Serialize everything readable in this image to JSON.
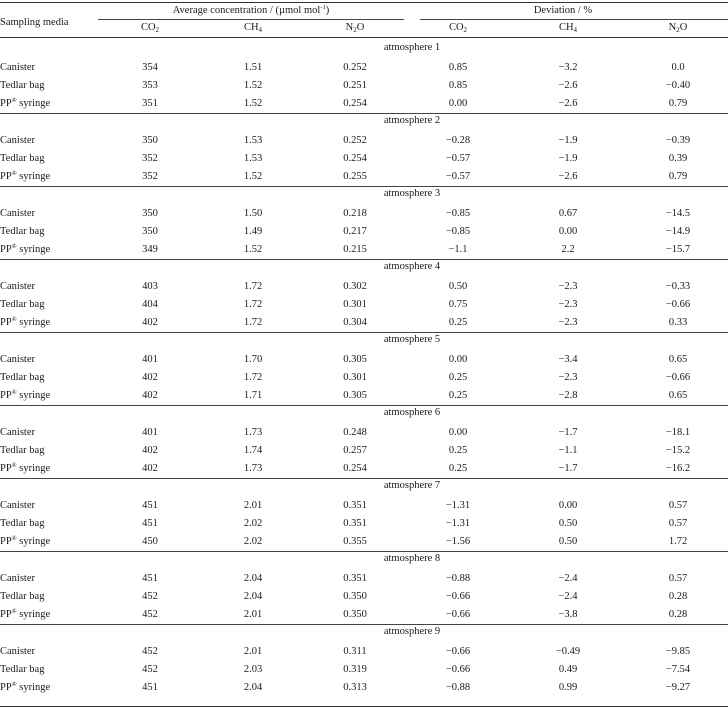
{
  "header": {
    "sampling_media": "Sampling media",
    "avg_group": "Average concentration / (µmol mol",
    "avg_group_sup": "-1",
    "avg_group_close": ")",
    "dev_group": "Deviation / %",
    "columns": [
      {
        "base": "CO",
        "sub": "2",
        "post": ""
      },
      {
        "base": "CH",
        "sub": "4",
        "post": ""
      },
      {
        "base": "N",
        "sub": "2",
        "post": "O"
      },
      {
        "base": "CO",
        "sub": "2",
        "post": ""
      },
      {
        "base": "CH",
        "sub": "4",
        "post": ""
      },
      {
        "base": "N",
        "sub": "2",
        "post": "O"
      }
    ]
  },
  "groups": [
    {
      "title": "atmosphere 1",
      "rows": [
        {
          "media": "Canister",
          "sup": "",
          "media_post": "",
          "values": [
            "354",
            "1.51",
            "0.252",
            "0.85",
            "−3.2",
            "0.0"
          ]
        },
        {
          "media": "Tedlar bag",
          "sup": "",
          "media_post": "",
          "values": [
            "353",
            "1.52",
            "0.251",
            "0.85",
            "−2.6",
            "−0.40"
          ]
        },
        {
          "media": "PP",
          "sup": "®",
          "media_post": " syringe",
          "values": [
            "351",
            "1.52",
            "0.254",
            "0.00",
            "−2.6",
            "0.79"
          ]
        }
      ]
    },
    {
      "title": "atmosphere 2",
      "rows": [
        {
          "media": "Canister",
          "sup": "",
          "media_post": "",
          "values": [
            "350",
            "1.53",
            "0.252",
            "−0.28",
            "−1.9",
            "−0.39"
          ]
        },
        {
          "media": "Tedlar bag",
          "sup": "",
          "media_post": "",
          "values": [
            "352",
            "1.53",
            "0.254",
            "−0.57",
            "−1.9",
            "0.39"
          ]
        },
        {
          "media": "PP",
          "sup": "®",
          "media_post": " syringe",
          "values": [
            "352",
            "1.52",
            "0.255",
            "−0.57",
            "−2.6",
            "0.79"
          ]
        }
      ]
    },
    {
      "title": "atmosphere 3",
      "rows": [
        {
          "media": "Canister",
          "sup": "",
          "media_post": "",
          "values": [
            "350",
            "1.50",
            "0.218",
            "−0.85",
            "0.67",
            "−14.5"
          ]
        },
        {
          "media": "Tedlar bag",
          "sup": "",
          "media_post": "",
          "values": [
            "350",
            "1.49",
            "0.217",
            "−0.85",
            "0.00",
            "−14.9"
          ]
        },
        {
          "media": "PP",
          "sup": "®",
          "media_post": " syringe",
          "values": [
            "349",
            "1.52",
            "0.215",
            "−1.1",
            "2.2",
            "−15.7"
          ]
        }
      ]
    },
    {
      "title": "atmosphere 4",
      "rows": [
        {
          "media": "Canister",
          "sup": "",
          "media_post": "",
          "values": [
            "403",
            "1.72",
            "0.302",
            "0.50",
            "−2.3",
            "−0.33"
          ]
        },
        {
          "media": "Tedlar bag",
          "sup": "",
          "media_post": "",
          "values": [
            "404",
            "1.72",
            "0.301",
            "0.75",
            "−2.3",
            "−0.66"
          ]
        },
        {
          "media": "PP",
          "sup": "®",
          "media_post": " syringe",
          "values": [
            "402",
            "1.72",
            "0.304",
            "0.25",
            "−2.3",
            "0.33"
          ]
        }
      ]
    },
    {
      "title": "atmosphere 5",
      "rows": [
        {
          "media": "Canister",
          "sup": "",
          "media_post": "",
          "values": [
            "401",
            "1.70",
            "0.305",
            "0.00",
            "−3.4",
            "0.65"
          ]
        },
        {
          "media": "Tedlar bag",
          "sup": "",
          "media_post": "",
          "values": [
            "402",
            "1.72",
            "0.301",
            "0.25",
            "−2.3",
            "−0.66"
          ]
        },
        {
          "media": "PP",
          "sup": "®",
          "media_post": " syringe",
          "values": [
            "402",
            "1.71",
            "0.305",
            "0.25",
            "−2.8",
            "0.65"
          ]
        }
      ]
    },
    {
      "title": "atmosphere 6",
      "rows": [
        {
          "media": "Canister",
          "sup": "",
          "media_post": "",
          "values": [
            "401",
            "1.73",
            "0.248",
            "0.00",
            "−1.7",
            "−18.1"
          ]
        },
        {
          "media": "Tedlar bag",
          "sup": "",
          "media_post": "",
          "values": [
            "402",
            "1.74",
            "0.257",
            "0.25",
            "−1.1",
            "−15.2"
          ]
        },
        {
          "media": "PP",
          "sup": "®",
          "media_post": " syringe",
          "values": [
            "402",
            "1.73",
            "0.254",
            "0.25",
            "−1.7",
            "−16.2"
          ]
        }
      ]
    },
    {
      "title": "atmosphere 7",
      "rows": [
        {
          "media": "Canister",
          "sup": "",
          "media_post": "",
          "values": [
            "451",
            "2.01",
            "0.351",
            "−1.31",
            "0.00",
            "0.57"
          ]
        },
        {
          "media": "Tedlar bag",
          "sup": "",
          "media_post": "",
          "values": [
            "451",
            "2.02",
            "0.351",
            "−1.31",
            "0.50",
            "0.57"
          ]
        },
        {
          "media": "PP",
          "sup": "®",
          "media_post": " syringe",
          "values": [
            "450",
            "2.02",
            "0.355",
            "−1.56",
            "0.50",
            "1.72"
          ]
        }
      ]
    },
    {
      "title": "atmosphere 8",
      "rows": [
        {
          "media": "Canister",
          "sup": "",
          "media_post": "",
          "values": [
            "451",
            "2.04",
            "0.351",
            "−0.88",
            "−2.4",
            "0.57"
          ]
        },
        {
          "media": "Tedlar bag",
          "sup": "",
          "media_post": "",
          "values": [
            "452",
            "2.04",
            "0.350",
            "−0.66",
            "−2.4",
            "0.28"
          ]
        },
        {
          "media": "PP",
          "sup": "®",
          "media_post": " syringe",
          "values": [
            "452",
            "2.01",
            "0.350",
            "−0.66",
            "−3.8",
            "0.28"
          ]
        }
      ]
    },
    {
      "title": "atmosphere 9",
      "rows": [
        {
          "media": "Canister",
          "sup": "",
          "media_post": "",
          "values": [
            "452",
            "2.01",
            "0.311",
            "−0.66",
            "−0.49",
            "−9.85"
          ]
        },
        {
          "media": "Tedlar bag",
          "sup": "",
          "media_post": "",
          "values": [
            "452",
            "2.03",
            "0.319",
            "−0.66",
            "0.49",
            "−7.54"
          ]
        },
        {
          "media": "PP",
          "sup": "®",
          "media_post": " syringe",
          "values": [
            "451",
            "2.04",
            "0.313",
            "−0.88",
            "0.99",
            "−9.27"
          ]
        }
      ]
    }
  ]
}
